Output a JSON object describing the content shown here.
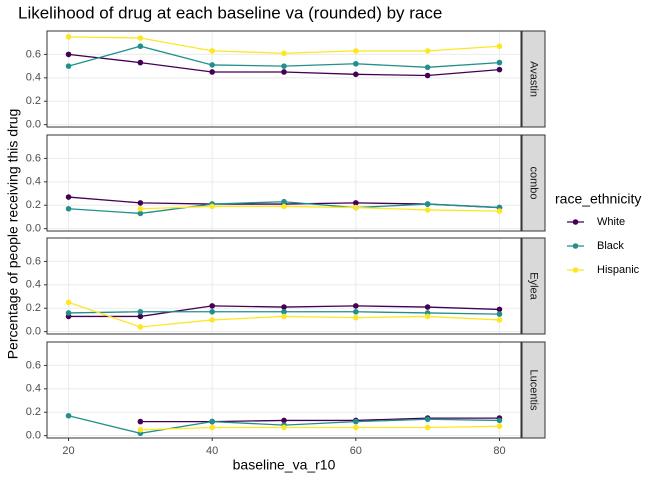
{
  "title": "Likelihood of drug at each baseline va (rounded) by race",
  "x_label": "baseline_va_r10",
  "y_label": "Percentage of people receiving this drug",
  "legend_title": "race_ethnicity",
  "chart_data": [
    {
      "type": "line",
      "panel": "Avastin",
      "x": [
        20,
        30,
        40,
        50,
        60,
        70,
        80
      ],
      "series": [
        {
          "name": "White",
          "color": "#440154",
          "values": [
            0.6,
            0.53,
            0.45,
            0.45,
            0.43,
            0.42,
            0.47
          ]
        },
        {
          "name": "Black",
          "color": "#21908C",
          "values": [
            0.5,
            0.67,
            0.51,
            0.5,
            0.52,
            0.49,
            0.53
          ]
        },
        {
          "name": "Hispanic",
          "color": "#FDE725",
          "values": [
            0.75,
            0.74,
            0.63,
            0.61,
            0.63,
            0.63,
            0.67
          ]
        }
      ],
      "xlim": [
        17,
        83
      ],
      "ylim": [
        -0.02,
        0.8
      ],
      "xticks": [
        20,
        40,
        60,
        80
      ],
      "yticks": [
        {
          "value": 0,
          "label": "0.0"
        },
        0.2,
        0.4,
        0.6
      ],
      "grid": true
    },
    {
      "type": "line",
      "panel": "combo",
      "x": [
        20,
        30,
        40,
        50,
        60,
        70,
        80
      ],
      "series": [
        {
          "name": "White",
          "color": "#440154",
          "values": [
            0.27,
            0.22,
            0.21,
            0.21,
            0.22,
            0.21,
            0.18
          ]
        },
        {
          "name": "Black",
          "color": "#21908C",
          "values": [
            0.17,
            0.13,
            0.21,
            0.23,
            0.18,
            0.21,
            0.18
          ]
        },
        {
          "name": "Hispanic",
          "color": "#FDE725",
          "values": [
            null,
            0.17,
            0.19,
            0.19,
            0.18,
            0.16,
            0.15
          ]
        }
      ],
      "xlim": [
        17,
        83
      ],
      "ylim": [
        -0.02,
        0.8
      ],
      "xticks": [
        20,
        40,
        60,
        80
      ],
      "yticks": [
        {
          "value": 0,
          "label": "0.0"
        },
        0.2,
        0.4,
        0.6
      ],
      "grid": true
    },
    {
      "type": "line",
      "panel": "Eylea",
      "x": [
        20,
        30,
        40,
        50,
        60,
        70,
        80
      ],
      "series": [
        {
          "name": "White",
          "color": "#440154",
          "values": [
            0.13,
            0.13,
            0.22,
            0.21,
            0.22,
            0.21,
            0.19
          ]
        },
        {
          "name": "Black",
          "color": "#21908C",
          "values": [
            0.16,
            0.17,
            0.17,
            0.17,
            0.17,
            0.16,
            0.15
          ]
        },
        {
          "name": "Hispanic",
          "color": "#FDE725",
          "values": [
            0.25,
            0.04,
            0.1,
            0.13,
            0.12,
            0.13,
            0.1
          ]
        }
      ],
      "xlim": [
        17,
        83
      ],
      "ylim": [
        -0.02,
        0.8
      ],
      "xticks": [
        20,
        40,
        60,
        80
      ],
      "yticks": [
        {
          "value": 0,
          "label": "0.0"
        },
        0.2,
        0.4,
        0.6
      ],
      "grid": true
    },
    {
      "type": "line",
      "panel": "Lucentis",
      "x": [
        20,
        30,
        40,
        50,
        60,
        70,
        80
      ],
      "series": [
        {
          "name": "White",
          "color": "#440154",
          "values": [
            null,
            0.12,
            0.12,
            0.13,
            0.13,
            0.15,
            0.15
          ]
        },
        {
          "name": "Black",
          "color": "#21908C",
          "values": [
            0.17,
            0.02,
            0.12,
            0.09,
            0.12,
            0.14,
            0.13
          ]
        },
        {
          "name": "Hispanic",
          "color": "#FDE725",
          "values": [
            null,
            0.05,
            0.07,
            0.07,
            0.07,
            0.07,
            0.08
          ]
        }
      ],
      "xlim": [
        17,
        83
      ],
      "ylim": [
        -0.02,
        0.8
      ],
      "xticks": [
        20,
        40,
        60,
        80
      ],
      "yticks": [
        {
          "value": 0,
          "label": "0.0"
        },
        0.2,
        0.4,
        0.6
      ],
      "grid": true
    }
  ]
}
